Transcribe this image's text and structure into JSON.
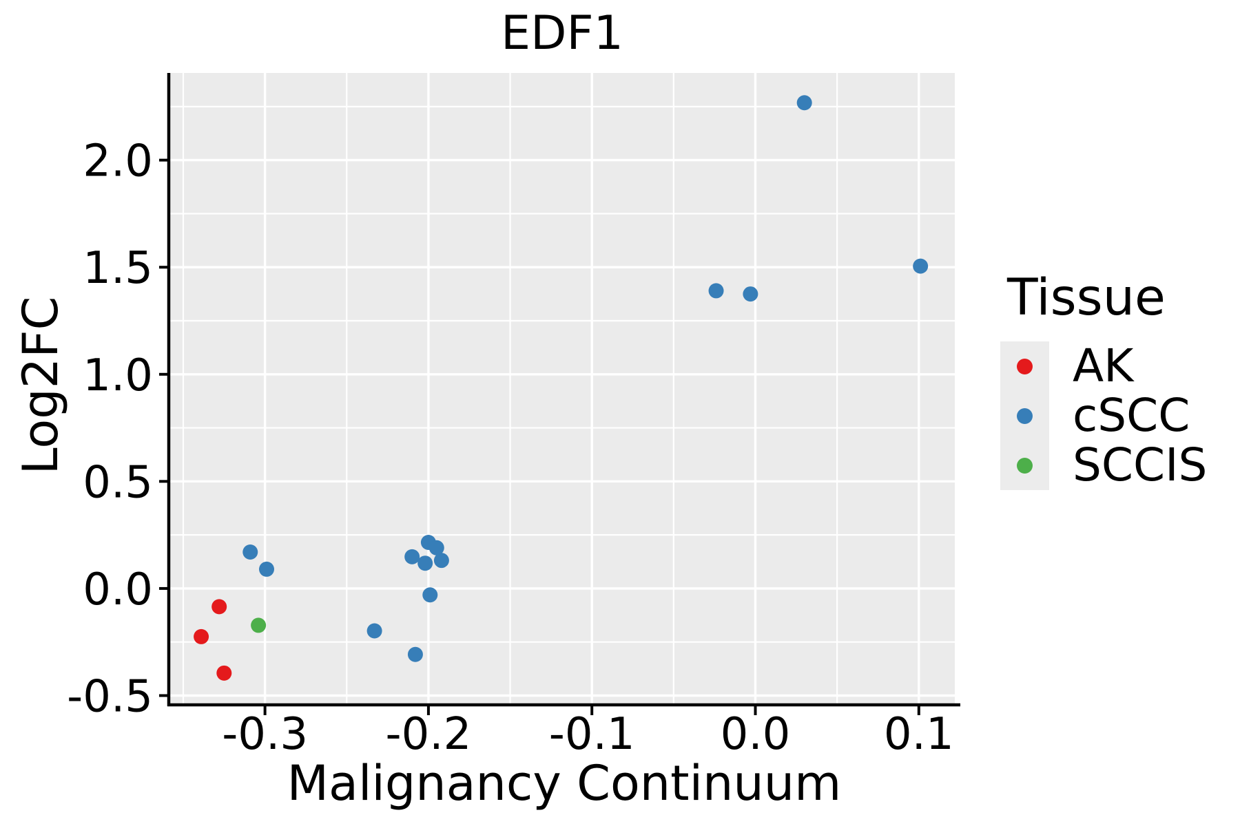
{
  "figure": {
    "background": "#ffffff",
    "text_color": "#000000"
  },
  "chart_data": {
    "type": "scatter",
    "title": "EDF1",
    "xlabel": "Malignancy Continuum",
    "ylabel": "Log2FC",
    "xlim": [
      -0.358,
      0.122
    ],
    "ylim": [
      -0.537,
      2.407
    ],
    "x_ticks": [
      -0.3,
      -0.2,
      -0.1,
      0.0,
      0.1
    ],
    "x_tick_labels": [
      "-0.3",
      "-0.2",
      "-0.1",
      "0.0",
      "0.1"
    ],
    "x_minor_ticks": [
      -0.35,
      -0.25,
      -0.15,
      -0.05,
      0.05
    ],
    "y_ticks": [
      -0.5,
      0.0,
      0.5,
      1.0,
      1.5,
      2.0
    ],
    "y_tick_labels": [
      "-0.5",
      "0.0",
      "0.5",
      "1.0",
      "1.5",
      "2.0"
    ],
    "y_minor_ticks": [
      -0.25,
      0.25,
      0.75,
      1.25,
      1.75,
      2.25
    ],
    "grid": true,
    "panel_background": "#ebebeb",
    "grid_color": "#ffffff",
    "axis_color": "#000000",
    "marker_radius": 11,
    "legend_position": "right",
    "series": [
      {
        "name": "AK",
        "color": "#e41a1c",
        "points": [
          [
            -0.328,
            -0.085
          ],
          [
            -0.339,
            -0.225
          ],
          [
            -0.325,
            -0.395
          ]
        ]
      },
      {
        "name": "cSCC",
        "color": "#377eb8",
        "points": [
          [
            -0.309,
            0.17
          ],
          [
            -0.299,
            0.09
          ],
          [
            -0.233,
            -0.198
          ],
          [
            -0.208,
            -0.308
          ],
          [
            -0.199,
            -0.03
          ],
          [
            -0.21,
            0.148
          ],
          [
            -0.202,
            0.118
          ],
          [
            -0.192,
            0.131
          ],
          [
            -0.2,
            0.215
          ],
          [
            -0.195,
            0.19
          ],
          [
            -0.024,
            1.39
          ],
          [
            -0.003,
            1.375
          ],
          [
            0.101,
            1.505
          ],
          [
            0.03,
            2.268
          ]
        ]
      },
      {
        "name": "SCCIS",
        "color": "#4daf4a",
        "points": [
          [
            -0.304,
            -0.172
          ]
        ]
      }
    ]
  },
  "legend": {
    "title": "Tissue",
    "items": [
      {
        "label": "AK",
        "color": "#e41a1c"
      },
      {
        "label": "cSCC",
        "color": "#377eb8"
      },
      {
        "label": "SCCIS",
        "color": "#4daf4a"
      }
    ]
  }
}
